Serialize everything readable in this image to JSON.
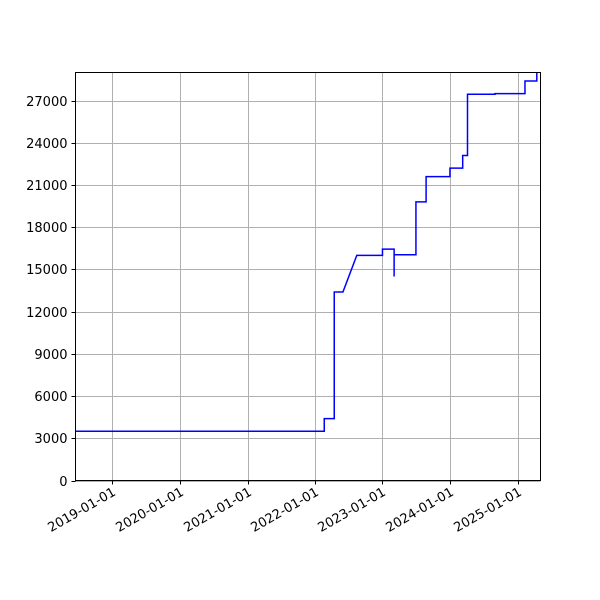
{
  "chart_data": {
    "type": "line",
    "title": "",
    "xlabel": "",
    "ylabel": "",
    "grid": true,
    "x_axis": {
      "type": "date",
      "range": [
        "2018-06-15",
        "2025-05-05"
      ],
      "ticks": [
        "2019-01-01",
        "2020-01-01",
        "2021-01-01",
        "2022-01-01",
        "2023-01-01",
        "2024-01-01",
        "2025-01-01"
      ]
    },
    "y_axis": {
      "range": [
        0,
        29000
      ],
      "ticks": [
        0,
        3000,
        6000,
        9000,
        12000,
        15000,
        18000,
        21000,
        24000,
        27000
      ],
      "tick_labels": [
        "0",
        "3000",
        "6000",
        "9000",
        "12000",
        "15000",
        "18000",
        "21000",
        "24000",
        "27000"
      ]
    },
    "series": [
      {
        "color": "#0000ff",
        "step": true,
        "points": [
          [
            "2018-06-15",
            3500
          ],
          [
            "2022-02-20",
            3500
          ],
          [
            "2022-02-20",
            4400
          ],
          [
            "2022-04-15",
            4400
          ],
          [
            "2022-04-15",
            13400
          ],
          [
            "2022-06-01",
            13400
          ],
          [
            "2022-08-15",
            16000
          ],
          [
            "2023-01-01",
            16000
          ],
          [
            "2023-01-01",
            16450
          ],
          [
            "2023-03-05",
            16450
          ],
          [
            "2023-03-05",
            14500
          ],
          [
            "2023-03-05",
            16050
          ],
          [
            "2023-07-01",
            16050
          ],
          [
            "2023-07-01",
            19800
          ],
          [
            "2023-08-25",
            19800
          ],
          [
            "2023-08-25",
            21600
          ],
          [
            "2024-01-01",
            21600
          ],
          [
            "2024-01-01",
            22200
          ],
          [
            "2024-03-10",
            22200
          ],
          [
            "2024-03-10",
            23100
          ],
          [
            "2024-04-05",
            23100
          ],
          [
            "2024-04-05",
            27450
          ],
          [
            "2024-09-01",
            27450
          ],
          [
            "2024-09-01",
            27500
          ],
          [
            "2025-02-10",
            27500
          ],
          [
            "2025-02-10",
            28400
          ],
          [
            "2025-04-15",
            28400
          ],
          [
            "2025-04-15",
            29000
          ]
        ]
      }
    ]
  }
}
